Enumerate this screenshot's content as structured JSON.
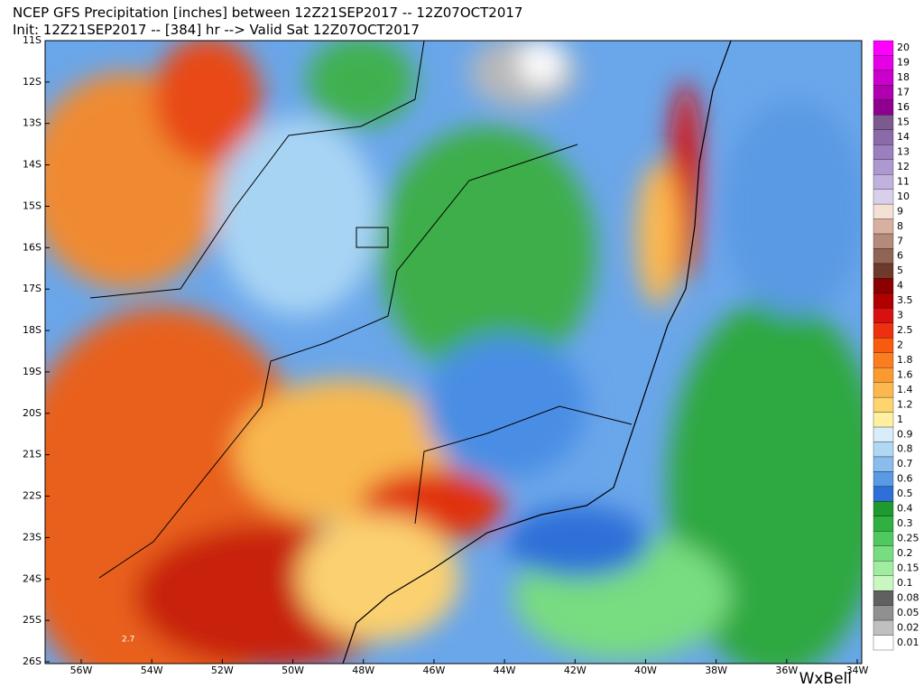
{
  "title": {
    "line1": "NCEP GFS Precipitation [inches] between 12Z21SEP2017 -- 12Z07OCT2017",
    "line2": "Init: 12Z21SEP2017 -- [384] hr --> Valid Sat 12Z07OCT2017"
  },
  "map": {
    "lat_labels": [
      "11S",
      "12S",
      "13S",
      "14S",
      "15S",
      "16S",
      "17S",
      "18S",
      "19S",
      "20S",
      "21S",
      "22S",
      "23S",
      "24S",
      "25S",
      "26S"
    ],
    "lon_labels": [
      "56W",
      "54W",
      "52W",
      "50W",
      "48W",
      "46W",
      "44W",
      "42W",
      "40W",
      "38W",
      "36W",
      "34W"
    ],
    "annotation": "2.7"
  },
  "colorbar": {
    "levels": [
      20,
      19,
      18,
      17,
      16,
      15,
      14,
      13,
      12,
      11,
      10,
      9,
      8,
      7,
      6,
      5,
      4,
      3.5,
      3,
      2.5,
      2,
      1.8,
      1.6,
      1.4,
      1.2,
      1,
      0.9,
      0.8,
      0.7,
      0.6,
      0.5,
      0.4,
      0.3,
      0.25,
      0.2,
      0.15,
      0.1,
      0.08,
      0.05,
      0.02,
      0.01
    ],
    "colors": [
      "#ff00ff",
      "#e600e6",
      "#cc00cc",
      "#b000b0",
      "#900090",
      "#7b5a8f",
      "#8a6aa8",
      "#9a80bf",
      "#ad98cf",
      "#c0b2dd",
      "#d8d0ea",
      "#f4e0d4",
      "#d8b0a0",
      "#b48a7a",
      "#916456",
      "#6e3a2c",
      "#8b0000",
      "#b00000",
      "#d81010",
      "#ee3010",
      "#f85a10",
      "#fa7d20",
      "#fa9a30",
      "#fcb850",
      "#fdd470",
      "#fff0a0",
      "#d8ecfa",
      "#b0d8f5",
      "#88bdee",
      "#5a9ae4",
      "#2f6fd8",
      "#1e9a30",
      "#2fb040",
      "#50c860",
      "#78dc80",
      "#a0eca0",
      "#c8f8c0",
      "#606060",
      "#909090",
      "#c0c0c0",
      "#ffffff"
    ]
  },
  "logo": "WxBell"
}
